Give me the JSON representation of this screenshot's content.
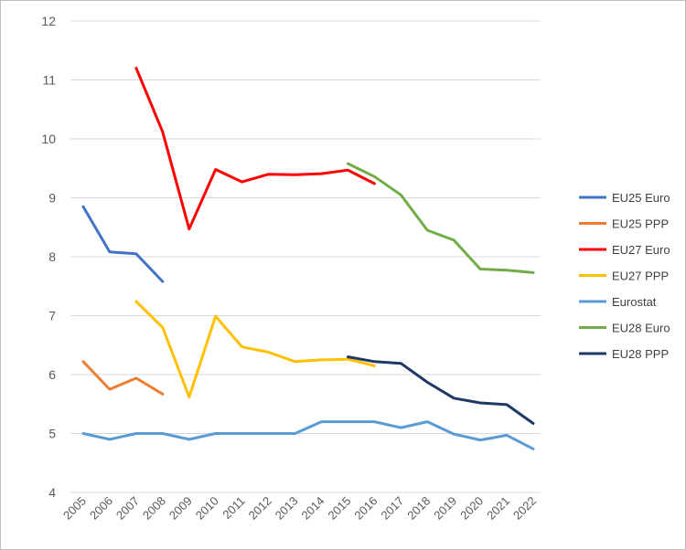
{
  "chart_data": {
    "type": "line",
    "title": "",
    "xlabel": "",
    "ylabel": "",
    "x": [
      "2005",
      "2006",
      "2007",
      "2008",
      "2009",
      "2010",
      "2011",
      "2012",
      "2013",
      "2014",
      "2015",
      "2016",
      "2017",
      "2018",
      "2019",
      "2020",
      "2021",
      "2022"
    ],
    "y_ticks": [
      "4",
      "5",
      "6",
      "7",
      "8",
      "9",
      "10",
      "11",
      "12"
    ],
    "ylim": [
      4,
      12
    ],
    "grid": true,
    "legend_position": "right",
    "series": [
      {
        "name": "EU25 Euro",
        "color": "#4472c4",
        "values": [
          8.85,
          8.08,
          8.05,
          7.58,
          null,
          null,
          null,
          null,
          null,
          null,
          null,
          null,
          null,
          null,
          null,
          null,
          null,
          null
        ]
      },
      {
        "name": "EU25 PPP",
        "color": "#ed7d31",
        "values": [
          6.22,
          5.75,
          5.94,
          5.67,
          null,
          null,
          null,
          null,
          null,
          null,
          null,
          null,
          null,
          null,
          null,
          null,
          null,
          null
        ]
      },
      {
        "name": "EU27 Euro",
        "color": "#ff0000",
        "values": [
          null,
          null,
          11.2,
          10.12,
          8.47,
          9.48,
          9.27,
          9.4,
          9.39,
          9.41,
          9.47,
          9.24,
          null,
          null,
          null,
          null,
          null,
          null
        ]
      },
      {
        "name": "EU27 PPP",
        "color": "#ffc000",
        "values": [
          null,
          null,
          7.24,
          6.8,
          5.62,
          6.99,
          6.47,
          6.38,
          6.22,
          6.25,
          6.26,
          6.15,
          null,
          null,
          null,
          null,
          null,
          null
        ]
      },
      {
        "name": "Eurostat",
        "color": "#5b9bd5",
        "values": [
          5.0,
          4.9,
          5.0,
          5.0,
          4.9,
          5.0,
          5.0,
          5.0,
          5.0,
          5.2,
          5.2,
          5.2,
          5.1,
          5.2,
          4.99,
          4.89,
          4.97,
          4.74
        ]
      },
      {
        "name": "EU28 Euro",
        "color": "#70ad47",
        "values": [
          null,
          null,
          null,
          null,
          null,
          null,
          null,
          null,
          null,
          null,
          9.58,
          9.36,
          9.05,
          8.45,
          8.28,
          7.79,
          7.77,
          7.73
        ]
      },
      {
        "name": "EU28 PPP",
        "color": "#203864",
        "values": [
          null,
          null,
          null,
          null,
          null,
          null,
          null,
          null,
          null,
          null,
          6.3,
          6.22,
          6.19,
          5.87,
          5.6,
          5.52,
          5.49,
          5.17
        ]
      }
    ]
  }
}
